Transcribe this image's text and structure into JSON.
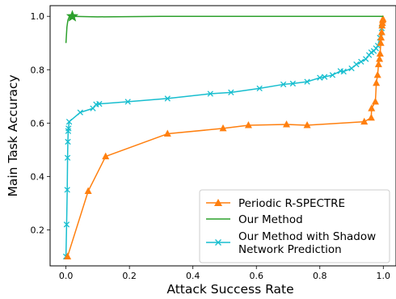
{
  "chart_data": {
    "type": "line",
    "xlabel": "Attack Success Rate",
    "ylabel": "Main Task Accuracy",
    "xlim": [
      -0.05,
      1.04
    ],
    "ylim": [
      0.065,
      1.04
    ],
    "xticks": [
      0.0,
      0.2,
      0.4,
      0.6,
      0.8,
      1.0
    ],
    "xtick_labels": [
      "0.0",
      "0.2",
      "0.4",
      "0.6",
      "0.8",
      "1.0"
    ],
    "yticks": [
      0.2,
      0.4,
      0.6,
      0.8,
      1.0
    ],
    "ytick_labels": [
      "0.2",
      "0.4",
      "0.6",
      "0.8",
      "1.0"
    ],
    "grid": false,
    "legend_position": "lower-right",
    "series": [
      {
        "name": "Periodic R-SPECTRE",
        "color": "#ff7f0e",
        "marker": "triangle",
        "x": [
          0.005,
          0.07,
          0.125,
          0.32,
          0.495,
          0.575,
          0.695,
          0.76,
          0.94,
          0.962,
          0.963,
          0.975,
          0.978,
          0.982,
          0.985,
          0.988,
          0.99,
          0.992,
          0.993,
          0.995,
          0.996,
          0.997,
          0.998,
          0.999
        ],
        "y": [
          0.1,
          0.345,
          0.475,
          0.56,
          0.58,
          0.592,
          0.595,
          0.592,
          0.605,
          0.62,
          0.655,
          0.68,
          0.75,
          0.78,
          0.82,
          0.84,
          0.86,
          0.9,
          0.92,
          0.94,
          0.965,
          0.975,
          0.985,
          0.99
        ]
      },
      {
        "name": "Our Method",
        "color": "#2ca02c",
        "marker": "star",
        "x": [
          0.0,
          0.003,
          0.006,
          0.01,
          0.02,
          0.1,
          0.3,
          0.6,
          1.0
        ],
        "y": [
          0.9,
          0.96,
          0.985,
          0.998,
          1.0,
          0.998,
          1.0,
          1.0,
          1.0
        ]
      },
      {
        "name": "Our Method with Shadow Network Prediction",
        "color": "#17becf",
        "marker": "x",
        "x": [
          0.0,
          0.002,
          0.004,
          0.005,
          0.006,
          0.007,
          0.008,
          0.01,
          0.045,
          0.085,
          0.095,
          0.105,
          0.195,
          0.32,
          0.455,
          0.52,
          0.61,
          0.685,
          0.715,
          0.76,
          0.8,
          0.815,
          0.84,
          0.865,
          0.875,
          0.9,
          0.915,
          0.93,
          0.945,
          0.955,
          0.962,
          0.97,
          0.977,
          0.983,
          0.989,
          0.995
        ],
        "y": [
          0.1,
          0.22,
          0.35,
          0.47,
          0.53,
          0.57,
          0.58,
          0.605,
          0.64,
          0.655,
          0.67,
          0.672,
          0.68,
          0.692,
          0.71,
          0.715,
          0.73,
          0.745,
          0.748,
          0.755,
          0.77,
          0.773,
          0.78,
          0.795,
          0.793,
          0.805,
          0.82,
          0.83,
          0.84,
          0.855,
          0.865,
          0.87,
          0.88,
          0.89,
          0.92,
          0.955
        ]
      }
    ],
    "legend_entries": [
      "Periodic R-SPECTRE",
      "Our Method",
      "Our Method with Shadow",
      "Network Prediction"
    ]
  }
}
